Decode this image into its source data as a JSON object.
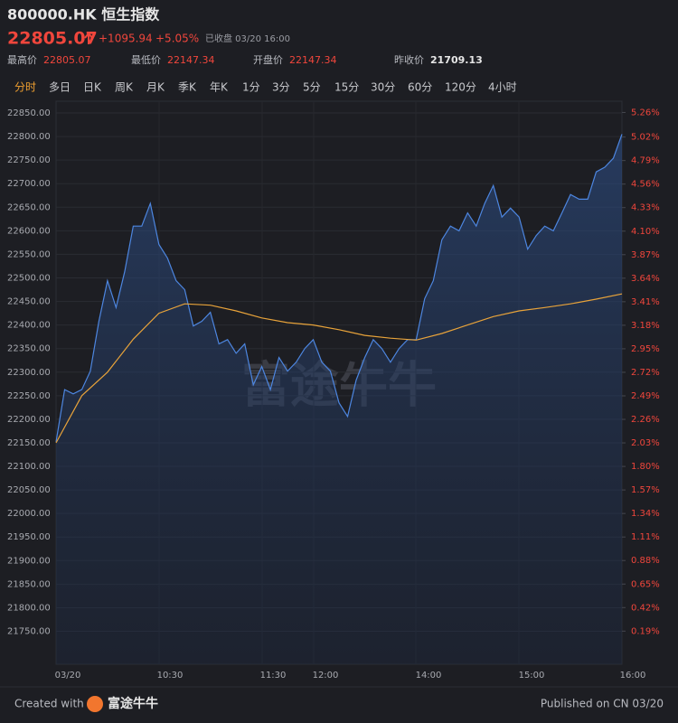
{
  "header": {
    "title": "800000.HK 恒生指数",
    "price": "22805.07",
    "change": "+1095.94",
    "change_pct": "+5.05%",
    "status": "已收盘 03/20 16:00",
    "stats": [
      {
        "label": "最高价",
        "value": "22805.07"
      },
      {
        "label": "最低价",
        "value": "22147.34"
      },
      {
        "label": "开盘价",
        "value": "22147.34"
      },
      {
        "label": "昨收价",
        "value": "21709.13"
      }
    ]
  },
  "tabs": [
    "分时",
    "多日",
    "日K",
    "周K",
    "月K",
    "季K",
    "年K",
    "1分",
    "3分",
    "5分",
    "15分",
    "30分",
    "60分",
    "120分",
    "4小时"
  ],
  "watermark": "富途牛牛",
  "chart_data": {
    "type": "line",
    "xticks": [
      "03/20",
      "10:30",
      "11:30",
      "12:00",
      "14:00",
      "15:00",
      "16:00"
    ],
    "ylim": [
      21680,
      22875
    ],
    "yticks": [
      {
        "value": 22850,
        "label": "22850.00"
      },
      {
        "value": 22800,
        "label": "22800.00"
      },
      {
        "value": 22750,
        "label": "22750.00"
      },
      {
        "value": 22700,
        "label": "22700.00"
      },
      {
        "value": 22650,
        "label": "22650.00"
      },
      {
        "value": 22600,
        "label": "22600.00"
      },
      {
        "value": 22550,
        "label": "22550.00"
      },
      {
        "value": 22500,
        "label": "22500.00"
      },
      {
        "value": 22450,
        "label": "22450.00"
      },
      {
        "value": 22400,
        "label": "22400.00"
      },
      {
        "value": 22350,
        "label": "22350.00"
      },
      {
        "value": 22300,
        "label": "22300.00"
      },
      {
        "value": 22250,
        "label": "22250.00"
      },
      {
        "value": 22200,
        "label": "22200.00"
      },
      {
        "value": 22150,
        "label": "22150.00"
      },
      {
        "value": 22100,
        "label": "22100.00"
      },
      {
        "value": 22050,
        "label": "22050.00"
      },
      {
        "value": 22000,
        "label": "22000.00"
      },
      {
        "value": 21950,
        "label": "21950.00"
      },
      {
        "value": 21900,
        "label": "21900.00"
      },
      {
        "value": 21850,
        "label": "21850.00"
      },
      {
        "value": 21800,
        "label": "21800.00"
      },
      {
        "value": 21750,
        "label": "21750.00"
      }
    ],
    "y2lim": [
      -0.134,
      5.37
    ],
    "y2ticks": [
      {
        "value": 5.26,
        "label": "5.26%"
      },
      {
        "value": 5.02,
        "label": "5.02%"
      },
      {
        "value": 4.79,
        "label": "4.79%"
      },
      {
        "value": 4.56,
        "label": "4.56%"
      },
      {
        "value": 4.33,
        "label": "4.33%"
      },
      {
        "value": 4.1,
        "label": "4.10%"
      },
      {
        "value": 3.87,
        "label": "3.87%"
      },
      {
        "value": 3.64,
        "label": "3.64%"
      },
      {
        "value": 3.41,
        "label": "3.41%"
      },
      {
        "value": 3.18,
        "label": "3.18%"
      },
      {
        "value": 2.95,
        "label": "2.95%"
      },
      {
        "value": 2.72,
        "label": "2.72%"
      },
      {
        "value": 2.49,
        "label": "2.49%"
      },
      {
        "value": 2.26,
        "label": "2.26%"
      },
      {
        "value": 2.03,
        "label": "2.03%"
      },
      {
        "value": 1.8,
        "label": "1.80%"
      },
      {
        "value": 1.57,
        "label": "1.57%"
      },
      {
        "value": 1.34,
        "label": "1.34%"
      },
      {
        "value": 1.11,
        "label": "1.11%"
      },
      {
        "value": 0.88,
        "label": "0.88%"
      },
      {
        "value": 0.65,
        "label": "0.65%"
      },
      {
        "value": 0.42,
        "label": "0.42%"
      },
      {
        "value": 0.19,
        "label": "0.19%"
      }
    ],
    "grid": true,
    "series": [
      {
        "color": "#4d86e0",
        "values": [
          22152,
          22263,
          22254,
          22263,
          22302,
          22408,
          22494,
          22437,
          22513,
          22610,
          22610,
          22658,
          22571,
          22542,
          22494,
          22475,
          22398,
          22408,
          22427,
          22360,
          22369,
          22340,
          22360,
          22273,
          22312,
          22263,
          22331,
          22302,
          22321,
          22350,
          22369,
          22321,
          22302,
          22235,
          22206,
          22283,
          22331,
          22369,
          22350,
          22321,
          22350,
          22369,
          22369,
          22456,
          22494,
          22581,
          22610,
          22600,
          22638,
          22610,
          22658,
          22696,
          22629,
          22648,
          22629,
          22561,
          22590,
          22610,
          22600,
          22638,
          22677,
          22667,
          22667,
          22725,
          22735,
          22754,
          22805
        ]
      },
      {
        "color": "#e8a33a",
        "values": [
          22150,
          22250,
          22300,
          22370,
          22425,
          22445,
          22442,
          22430,
          22415,
          22405,
          22400,
          22390,
          22378,
          22372,
          22368,
          22382,
          22400,
          22418,
          22430,
          22437,
          22445,
          22455,
          22466
        ]
      }
    ]
  },
  "footer": {
    "created": "Created with",
    "brand": "富途牛牛",
    "published": "Published on CN 03/20"
  }
}
